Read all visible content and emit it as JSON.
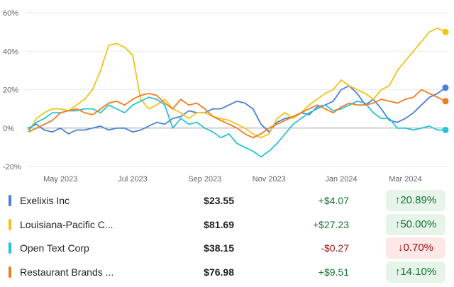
{
  "chart_data": {
    "type": "line",
    "categories": [
      null,
      null,
      null,
      null,
      "May 2023",
      null,
      null,
      null,
      null,
      null,
      null,
      null,
      null,
      "Jul 2023",
      null,
      null,
      null,
      null,
      null,
      null,
      null,
      null,
      "Sep 2023",
      null,
      null,
      null,
      null,
      null,
      null,
      null,
      "Nov 2023",
      null,
      null,
      null,
      null,
      null,
      null,
      null,
      null,
      "Jan 2024",
      null,
      null,
      null,
      null,
      null,
      null,
      null,
      "Mar 2024",
      null,
      null,
      null,
      null,
      null
    ],
    "ylim": [
      -20,
      60
    ],
    "yticks": [
      {
        "value": -20,
        "label": "-20%"
      },
      {
        "value": 0,
        "label": "0%"
      },
      {
        "value": 20,
        "label": "20%"
      },
      {
        "value": 40,
        "label": "40%"
      },
      {
        "value": 60,
        "label": "60%"
      }
    ],
    "grid": true,
    "series": [
      {
        "name": "Exelixis Inc",
        "color": "#4a7fd8",
        "values": [
          0,
          2,
          -1,
          -2,
          0,
          -3,
          -1,
          -1,
          0,
          1,
          -1,
          0,
          0,
          -2,
          -1,
          1,
          3,
          2,
          5,
          6,
          9,
          8,
          8,
          10,
          10,
          12,
          14,
          13,
          10,
          2,
          -2,
          3,
          5,
          6,
          8,
          7,
          11,
          12,
          14,
          20,
          22,
          18,
          12,
          15,
          10,
          4,
          3,
          5,
          8,
          12,
          16,
          18,
          21
        ]
      },
      {
        "name": "Louisiana-Pacific C...",
        "color": "#f2c21b",
        "values": [
          -2,
          5,
          8,
          10,
          10,
          9,
          12,
          15,
          20,
          30,
          43,
          44,
          42,
          38,
          15,
          10,
          12,
          15,
          10,
          8,
          5,
          8,
          8,
          6,
          5,
          4,
          2,
          0,
          -3,
          -5,
          -3,
          5,
          8,
          5,
          8,
          12,
          15,
          18,
          20,
          25,
          22,
          20,
          18,
          15,
          20,
          22,
          30,
          35,
          40,
          45,
          50,
          52,
          50
        ]
      },
      {
        "name": "Open Text Corp",
        "color": "#27c1d8",
        "values": [
          -1,
          3,
          5,
          8,
          8,
          9,
          9,
          10,
          10,
          8,
          12,
          10,
          8,
          12,
          14,
          16,
          15,
          12,
          0,
          5,
          2,
          3,
          0,
          -2,
          -5,
          -3,
          -8,
          -10,
          -12,
          -15,
          -12,
          -8,
          -3,
          2,
          5,
          8,
          10,
          12,
          9,
          10,
          12,
          14,
          13,
          8,
          5,
          5,
          0,
          0,
          -1,
          0,
          1,
          -1,
          -1
        ]
      },
      {
        "name": "Restaurant Brands ...",
        "color": "#f07c20",
        "values": [
          -2,
          0,
          2,
          4,
          8,
          9,
          10,
          8,
          7,
          10,
          13,
          14,
          12,
          15,
          17,
          18,
          17,
          13,
          10,
          15,
          12,
          13,
          10,
          6,
          4,
          2,
          0,
          -3,
          -5,
          -3,
          0,
          2,
          4,
          6,
          8,
          10,
          12,
          10,
          8,
          11,
          13,
          12,
          12,
          13,
          15,
          14,
          13,
          15,
          16,
          20,
          18,
          16,
          14
        ]
      }
    ]
  },
  "table": {
    "rows": [
      {
        "price": "$23.55",
        "change": "+$4.07",
        "percent": "↑20.89%",
        "color": "#137333",
        "badge_color": "#e6f4ea"
      },
      {
        "price": "$81.69",
        "change": "+$27.23",
        "percent": "↑50.00%",
        "color": "#137333",
        "badge_color": "#e6f4ea"
      },
      {
        "price": "$38.15",
        "change": "-$0.27",
        "percent": "↓0.70%",
        "color": "#a50e0e",
        "badge_color": "#fce8e6"
      },
      {
        "price": "$76.98",
        "change": "+$9.51",
        "percent": "↑14.10%",
        "color": "#137333",
        "badge_color": "#e6f4ea"
      }
    ]
  }
}
